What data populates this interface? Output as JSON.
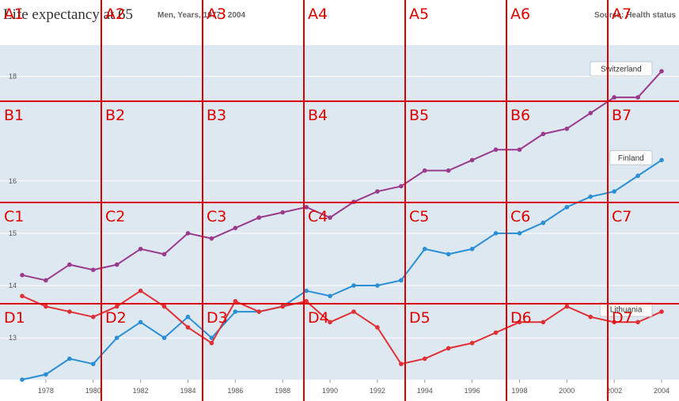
{
  "header": {
    "title": "Life expectancy at 65",
    "subtitle": "Men, Years, 1977 - 2004",
    "source_label": "Source:",
    "source_value": "Health status"
  },
  "colors": {
    "plot_bg": "#dde8f1",
    "gridline": "#ffffff",
    "switzerland": "#9a3a8c",
    "finland": "#2a8fd4",
    "lithuania": "#e03035",
    "overlay_grid": "#e00000"
  },
  "chart_data": {
    "type": "line",
    "title": "Life expectancy at 65",
    "subtitle": "Men, Years, 1977 - 2004",
    "x": [
      1977,
      1978,
      1979,
      1980,
      1981,
      1982,
      1983,
      1984,
      1985,
      1986,
      1987,
      1988,
      1989,
      1990,
      1991,
      1992,
      1993,
      1994,
      1995,
      1996,
      1997,
      1998,
      1999,
      2000,
      2001,
      2002,
      2003,
      2004
    ],
    "x_ticks": [
      1978,
      1980,
      1982,
      1984,
      1986,
      1988,
      1990,
      1992,
      1994,
      1996,
      1998,
      2000,
      2002,
      2004
    ],
    "y_ticks": [
      13,
      14,
      15,
      16,
      18
    ],
    "xlim": [
      1976.5,
      2004.5
    ],
    "ylim": [
      12.2,
      18.6
    ],
    "grid": true,
    "series": [
      {
        "name": "Switzerland",
        "color": "#9a3a8c",
        "values": [
          14.2,
          14.1,
          14.4,
          14.3,
          14.4,
          14.7,
          14.6,
          15.0,
          14.9,
          15.1,
          15.3,
          15.4,
          15.5,
          15.3,
          15.6,
          15.8,
          15.9,
          16.2,
          16.2,
          16.4,
          16.6,
          16.6,
          16.9,
          17.0,
          17.3,
          17.6,
          17.6,
          18.1
        ]
      },
      {
        "name": "Finland",
        "color": "#2a8fd4",
        "values": [
          12.2,
          12.3,
          12.6,
          12.5,
          13.0,
          13.3,
          13.0,
          13.4,
          13.0,
          13.5,
          13.5,
          13.6,
          13.9,
          13.8,
          14.0,
          14.0,
          14.1,
          14.7,
          14.6,
          14.7,
          15.0,
          15.0,
          15.2,
          15.5,
          15.7,
          15.8,
          16.1,
          16.4
        ]
      },
      {
        "name": "Lithuania",
        "color": "#e03035",
        "values": [
          13.8,
          13.6,
          13.5,
          13.4,
          13.6,
          13.9,
          13.6,
          13.2,
          12.9,
          13.7,
          13.5,
          13.6,
          13.7,
          13.3,
          13.5,
          13.2,
          12.5,
          12.6,
          12.8,
          12.9,
          13.1,
          13.3,
          13.3,
          13.6,
          13.4,
          13.3,
          13.3,
          13.5
        ]
      }
    ]
  },
  "overlay": {
    "rows": [
      "A",
      "B",
      "C",
      "D"
    ],
    "cols": [
      "1",
      "2",
      "3",
      "4",
      "5",
      "6",
      "7"
    ]
  }
}
